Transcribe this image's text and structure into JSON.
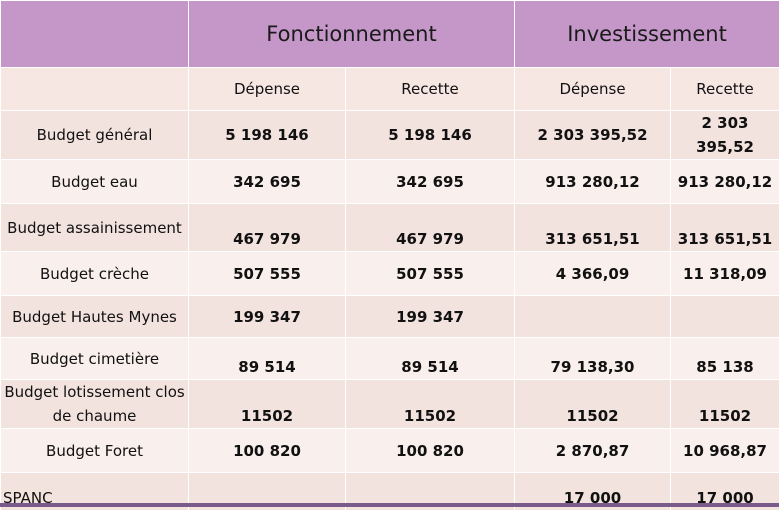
{
  "header": {
    "group1": "Fonctionnement",
    "group2": "Investissement"
  },
  "subheader": {
    "depense": "Dépense",
    "recette": "Recette"
  },
  "rows": [
    {
      "label": "Budget général",
      "f_dep": "5 198 146",
      "f_rec": "5 198 146",
      "i_dep": "2 303 395,52",
      "i_rec": "2 303 395,52"
    },
    {
      "label": "Budget eau",
      "f_dep": "342 695",
      "f_rec": "342 695",
      "i_dep": "913 280,12",
      "i_rec": "913 280,12"
    },
    {
      "label": "Budget assainissement",
      "f_dep": "467 979",
      "f_rec": "467 979",
      "i_dep": "313 651,51",
      "i_rec": "313 651,51"
    },
    {
      "label": "Budget crèche",
      "f_dep": "507 555",
      "f_rec": "507 555",
      "i_dep": "4 366,09",
      "i_rec": "11 318,09"
    },
    {
      "label": "Budget Hautes Mynes",
      "f_dep": "199 347",
      "f_rec": "199 347",
      "i_dep": "",
      "i_rec": ""
    },
    {
      "label": "Budget cimetière",
      "f_dep": "89 514",
      "f_rec": "89 514",
      "i_dep": "79 138,30",
      "i_rec": "85 138"
    },
    {
      "label": "Budget lotissement clos de chaume",
      "f_dep": "11502",
      "f_rec": "11502",
      "i_dep": "11502",
      "i_rec": "11502"
    },
    {
      "label": "Budget Foret",
      "f_dep": "100 820",
      "f_rec": "100 820",
      "i_dep": "2 870,87",
      "i_rec": "10 968,87"
    },
    {
      "label": "SPANC",
      "f_dep": "",
      "f_rec": "",
      "i_dep": "17 000",
      "i_rec": "17 000"
    }
  ],
  "colors": {
    "header_bg": "#c597c9",
    "row_bg": "#f3e3df",
    "row_alt_bg": "#f9efec"
  }
}
